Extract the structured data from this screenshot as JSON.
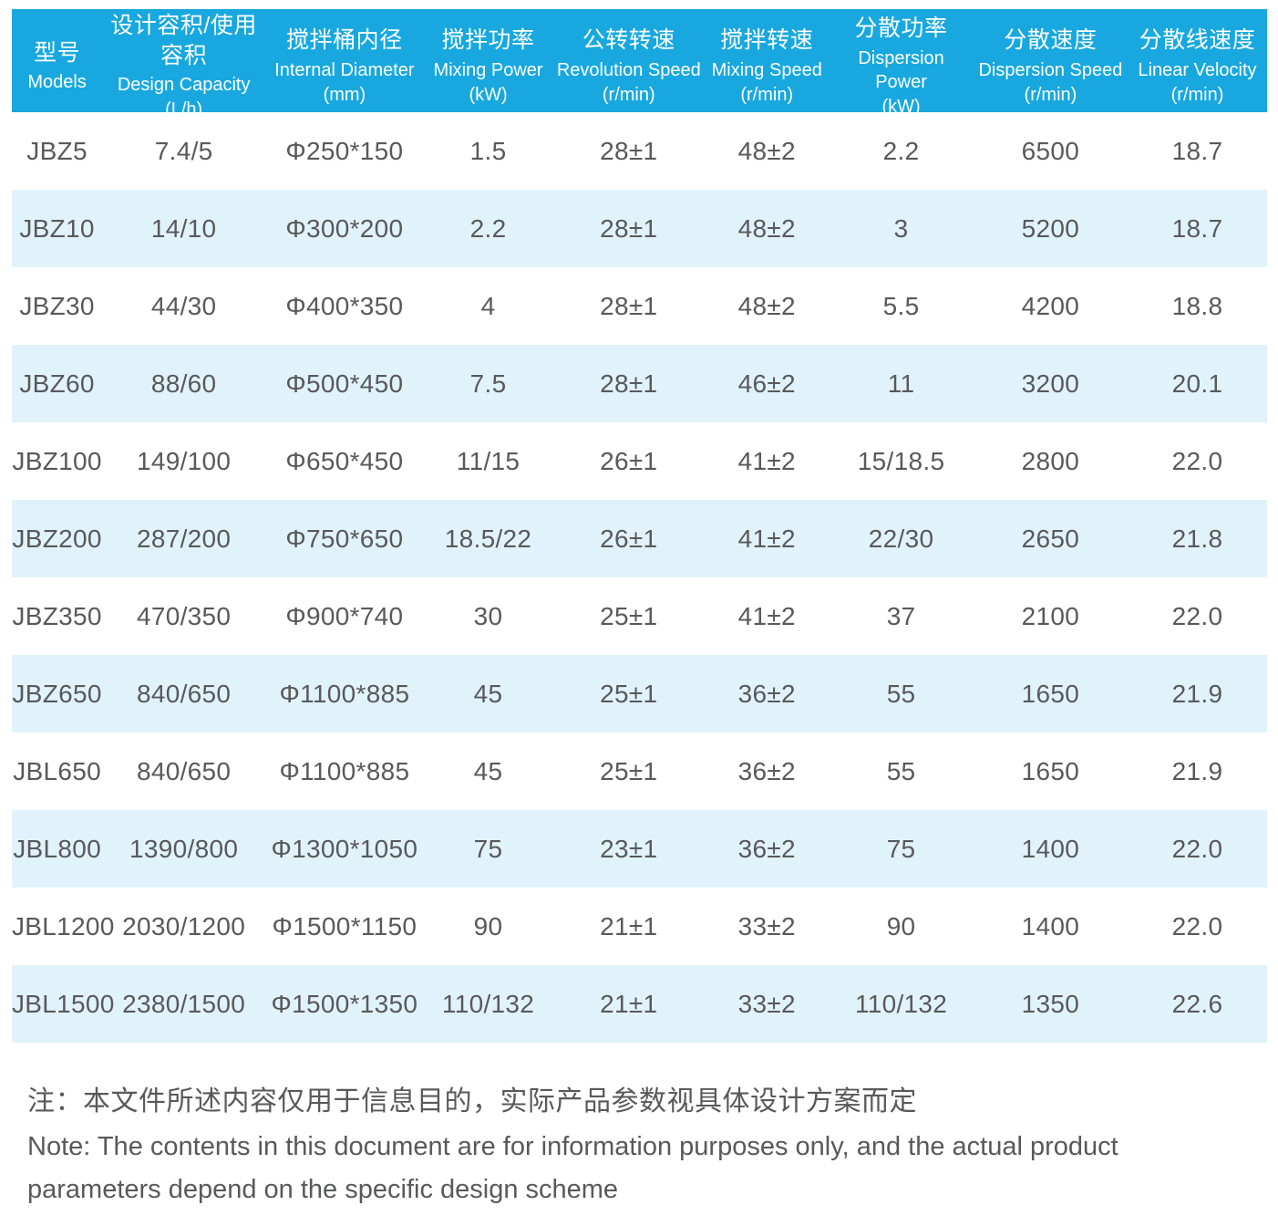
{
  "theme": {
    "header_bg": "#18A8DF",
    "row_alt_bg": "#E1F3FA",
    "row_bg": "#FFFFFF",
    "header_text_color": "#FFFFFF",
    "body_text_color": "#58595B"
  },
  "table": {
    "columns": [
      {
        "zh": "型号",
        "en": "Models",
        "unit": ""
      },
      {
        "zh": "设计容积/使用容积",
        "en": "Design Capacity",
        "unit": "(L/h)"
      },
      {
        "zh": "搅拌桶内径",
        "en": "Internal Diameter",
        "unit": "(mm)"
      },
      {
        "zh": "搅拌功率",
        "en": "Mixing Power",
        "unit": "(kW)"
      },
      {
        "zh": "公转转速",
        "en": "Revolution Speed",
        "unit": "(r/min)"
      },
      {
        "zh": "搅拌转速",
        "en": "Mixing Speed",
        "unit": "(r/min)"
      },
      {
        "zh": "分散功率",
        "en": "Dispersion Power",
        "unit": "(kW)"
      },
      {
        "zh": "分散速度",
        "en": "Dispersion Speed",
        "unit": "(r/min)"
      },
      {
        "zh": "分散线速度",
        "en": "Linear Velocity",
        "unit": "(r/min)"
      }
    ],
    "rows": [
      [
        "JBZ5",
        "7.4/5",
        "Φ250*150",
        "1.5",
        "28±1",
        "48±2",
        "2.2",
        "6500",
        "18.7"
      ],
      [
        "JBZ10",
        "14/10",
        "Φ300*200",
        "2.2",
        "28±1",
        "48±2",
        "3",
        "5200",
        "18.7"
      ],
      [
        "JBZ30",
        "44/30",
        "Φ400*350",
        "4",
        "28±1",
        "48±2",
        "5.5",
        "4200",
        "18.8"
      ],
      [
        "JBZ60",
        "88/60",
        "Φ500*450",
        "7.5",
        "28±1",
        "46±2",
        "11",
        "3200",
        "20.1"
      ],
      [
        "JBZ100",
        "149/100",
        "Φ650*450",
        "11/15",
        "26±1",
        "41±2",
        "15/18.5",
        "2800",
        "22.0"
      ],
      [
        "JBZ200",
        "287/200",
        "Φ750*650",
        "18.5/22",
        "26±1",
        "41±2",
        "22/30",
        "2650",
        "21.8"
      ],
      [
        "JBZ350",
        "470/350",
        "Φ900*740",
        "30",
        "25±1",
        "41±2",
        "37",
        "2100",
        "22.0"
      ],
      [
        "JBZ650",
        "840/650",
        "Φ1100*885",
        "45",
        "25±1",
        "36±2",
        "55",
        "1650",
        "21.9"
      ],
      [
        "JBL650",
        "840/650",
        "Φ1100*885",
        "45",
        "25±1",
        "36±2",
        "55",
        "1650",
        "21.9"
      ],
      [
        "JBL800",
        "1390/800",
        "Φ1300*1050",
        "75",
        "23±1",
        "36±2",
        "75",
        "1400",
        "22.0"
      ],
      [
        "JBL1200",
        "2030/1200",
        "Φ1500*1150",
        "90",
        "21±1",
        "33±2",
        "90",
        "1400",
        "22.0"
      ],
      [
        "JBL1500",
        "2380/1500",
        "Φ1500*1350",
        "110/132",
        "21±1",
        "33±2",
        "110/132",
        "1350",
        "22.6"
      ]
    ]
  },
  "note": {
    "zh": "注：本文件所述内容仅用于信息目的，实际产品参数视具体设计方案而定",
    "en": "Note: The contents in this document are for information purposes only, and the actual product parameters depend on the specific design scheme"
  }
}
